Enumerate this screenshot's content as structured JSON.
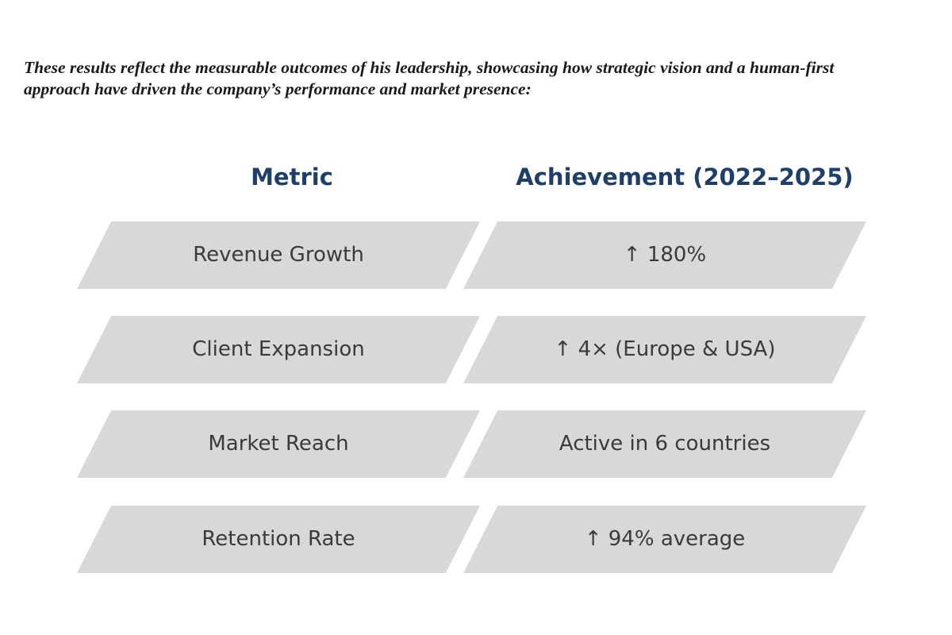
{
  "intro": {
    "line1": "These results reflect the measurable outcomes of his leadership, showcasing how strategic vision and a human-first",
    "line2": "approach have driven the company’s performance and market presence:"
  },
  "table": {
    "headers": {
      "metric": "Metric",
      "achievement": "Achievement (2022–2025)"
    },
    "fill_color": "#d8d8d8",
    "header_color": "#1f3f6b",
    "rows": [
      {
        "metric": "Revenue Growth",
        "achievement": "↑ 180%"
      },
      {
        "metric": "Client Expansion",
        "achievement": "↑ 4× (Europe & USA)"
      },
      {
        "metric": "Market Reach",
        "achievement": "Active in 6 countries"
      },
      {
        "metric": "Retention Rate",
        "achievement": "↑ 94% average"
      }
    ]
  }
}
